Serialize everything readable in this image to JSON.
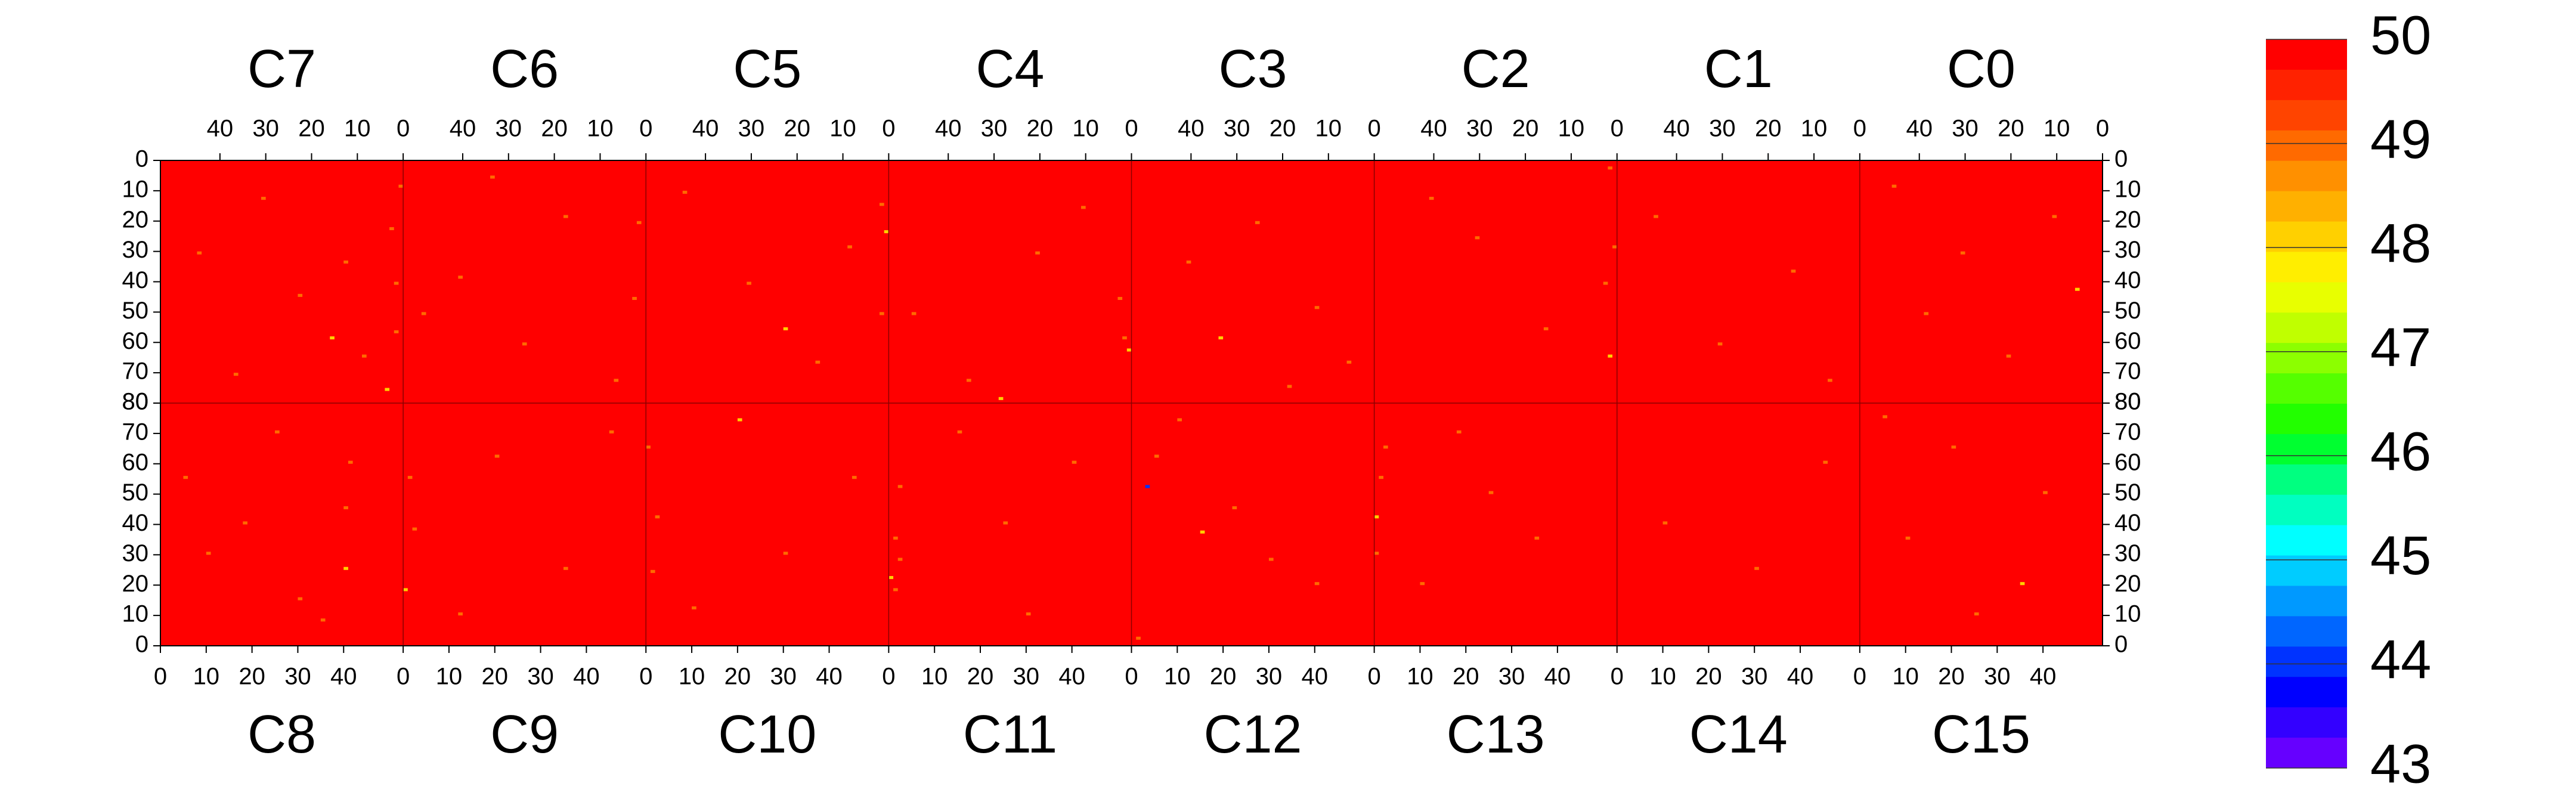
{
  "chart_data": {
    "type": "heatmap",
    "top_chips": [
      "C7",
      "C6",
      "C5",
      "C4",
      "C3",
      "C2",
      "C1",
      "C0"
    ],
    "bottom_chips": [
      "C8",
      "C9",
      "C10",
      "C11",
      "C12",
      "C13",
      "C14",
      "C15"
    ],
    "xlim": [
      0,
      53
    ],
    "xticks": [
      0,
      10,
      20,
      30,
      40
    ],
    "ylim": [
      0,
      80
    ],
    "yticks": [
      0,
      10,
      20,
      30,
      40,
      50,
      60,
      70,
      80
    ],
    "zlim": [
      43,
      50
    ],
    "zticks": [
      43,
      44,
      45,
      46,
      47,
      48,
      49,
      50
    ],
    "colors": [
      "#ff0000",
      "#ff2200",
      "#ff4400",
      "#ff6a00",
      "#ff9000",
      "#ffb000",
      "#ffd000",
      "#ffee00",
      "#e8ff00",
      "#c0ff00",
      "#8cff00",
      "#55ff00",
      "#22ff00",
      "#00ff30",
      "#00ff80",
      "#00ffc0",
      "#00ffff",
      "#00ccff",
      "#0099ff",
      "#0066ff",
      "#0033ff",
      "#0000ff",
      "#3300ff",
      "#6600ff"
    ],
    "fill_value": 50,
    "cells": [
      [
        "C7",
        2,
        22,
        49
      ],
      [
        "C7",
        1,
        40,
        49
      ],
      [
        "C7",
        1,
        56,
        49
      ],
      [
        "C7",
        15,
        58,
        48
      ],
      [
        "C7",
        30,
        12,
        49
      ],
      [
        "C7",
        44,
        30,
        49
      ],
      [
        "C7",
        8,
        64,
        49
      ],
      [
        "C7",
        0,
        8,
        49
      ],
      [
        "C7",
        22,
        44,
        49
      ],
      [
        "C7",
        36,
        70,
        49
      ],
      [
        "C7",
        3,
        75,
        48
      ],
      [
        "C7",
        12,
        33,
        49
      ],
      [
        "C6",
        1,
        20,
        49
      ],
      [
        "C6",
        2,
        45,
        49
      ],
      [
        "C6",
        17,
        18,
        49
      ],
      [
        "C6",
        26,
        60,
        49
      ],
      [
        "C6",
        40,
        38,
        49
      ],
      [
        "C6",
        6,
        72,
        49
      ],
      [
        "C6",
        33,
        5,
        49
      ],
      [
        "C6",
        48,
        50,
        49
      ],
      [
        "C5",
        1,
        14,
        49
      ],
      [
        "C5",
        0,
        23,
        48
      ],
      [
        "C5",
        1,
        50,
        49
      ],
      [
        "C5",
        30,
        40,
        49
      ],
      [
        "C5",
        15,
        66,
        49
      ],
      [
        "C5",
        44,
        10,
        49
      ],
      [
        "C5",
        22,
        55,
        48
      ],
      [
        "C5",
        8,
        28,
        49
      ],
      [
        "C4",
        1,
        58,
        49
      ],
      [
        "C4",
        0,
        62,
        48
      ],
      [
        "C4",
        2,
        45,
        49
      ],
      [
        "C4",
        20,
        30,
        49
      ],
      [
        "C4",
        35,
        72,
        49
      ],
      [
        "C4",
        10,
        15,
        49
      ],
      [
        "C4",
        47,
        50,
        49
      ],
      [
        "C4",
        28,
        78,
        48
      ],
      [
        "C3",
        40,
        33,
        49
      ],
      [
        "C3",
        12,
        48,
        49
      ],
      [
        "C3",
        25,
        20,
        49
      ],
      [
        "C3",
        5,
        66,
        49
      ],
      [
        "C3",
        33,
        58,
        48
      ],
      [
        "C3",
        18,
        74,
        49
      ],
      [
        "C2",
        1,
        2,
        49
      ],
      [
        "C2",
        0,
        28,
        49
      ],
      [
        "C2",
        2,
        40,
        49
      ],
      [
        "C2",
        1,
        64,
        48
      ],
      [
        "C2",
        30,
        25,
        49
      ],
      [
        "C2",
        15,
        55,
        49
      ],
      [
        "C2",
        40,
        12,
        49
      ],
      [
        "C1",
        14,
        36,
        49
      ],
      [
        "C1",
        30,
        60,
        49
      ],
      [
        "C1",
        44,
        18,
        49
      ],
      [
        "C1",
        6,
        72,
        49
      ],
      [
        "C0",
        10,
        18,
        49
      ],
      [
        "C0",
        5,
        42,
        48
      ],
      [
        "C0",
        30,
        30,
        49
      ],
      [
        "C0",
        45,
        8,
        49
      ],
      [
        "C0",
        20,
        64,
        49
      ],
      [
        "C0",
        38,
        50,
        49
      ],
      [
        "C8",
        40,
        45,
        49
      ],
      [
        "C8",
        41,
        60,
        49
      ],
      [
        "C8",
        40,
        25,
        48
      ],
      [
        "C8",
        35,
        8,
        49
      ],
      [
        "C8",
        10,
        30,
        49
      ],
      [
        "C8",
        5,
        55,
        49
      ],
      [
        "C8",
        25,
        70,
        49
      ],
      [
        "C8",
        30,
        15,
        49
      ],
      [
        "C8",
        18,
        40,
        49
      ],
      [
        "C9",
        1,
        55,
        49
      ],
      [
        "C9",
        0,
        18,
        48
      ],
      [
        "C9",
        2,
        38,
        49
      ],
      [
        "C9",
        20,
        62,
        49
      ],
      [
        "C9",
        35,
        25,
        49
      ],
      [
        "C9",
        45,
        70,
        49
      ],
      [
        "C9",
        12,
        10,
        49
      ],
      [
        "C10",
        1,
        24,
        49
      ],
      [
        "C10",
        0,
        65,
        49
      ],
      [
        "C10",
        2,
        42,
        49
      ],
      [
        "C10",
        20,
        74,
        48
      ],
      [
        "C10",
        30,
        30,
        49
      ],
      [
        "C10",
        45,
        55,
        49
      ],
      [
        "C10",
        10,
        12,
        49
      ],
      [
        "C11",
        1,
        18,
        49
      ],
      [
        "C11",
        0,
        22,
        48
      ],
      [
        "C11",
        1,
        35,
        49
      ],
      [
        "C11",
        2,
        28,
        49
      ],
      [
        "C11",
        2,
        52,
        49
      ],
      [
        "C11",
        25,
        40,
        49
      ],
      [
        "C11",
        40,
        60,
        49
      ],
      [
        "C11",
        15,
        70,
        49
      ],
      [
        "C11",
        30,
        10,
        49
      ],
      [
        "C12",
        3,
        52,
        44
      ],
      [
        "C12",
        15,
        37,
        48
      ],
      [
        "C12",
        22,
        45,
        49
      ],
      [
        "C12",
        30,
        28,
        49
      ],
      [
        "C12",
        5,
        62,
        49
      ],
      [
        "C12",
        40,
        20,
        49
      ],
      [
        "C12",
        10,
        74,
        49
      ],
      [
        "C12",
        1,
        2,
        49
      ],
      [
        "C13",
        0,
        30,
        49
      ],
      [
        "C13",
        0,
        42,
        48
      ],
      [
        "C13",
        1,
        55,
        49
      ],
      [
        "C13",
        2,
        65,
        49
      ],
      [
        "C13",
        10,
        20,
        49
      ],
      [
        "C13",
        25,
        50,
        49
      ],
      [
        "C13",
        35,
        35,
        49
      ],
      [
        "C13",
        18,
        70,
        49
      ],
      [
        "C14",
        10,
        40,
        49
      ],
      [
        "C14",
        30,
        25,
        49
      ],
      [
        "C14",
        45,
        60,
        49
      ],
      [
        "C15",
        25,
        10,
        49
      ],
      [
        "C15",
        10,
        35,
        49
      ],
      [
        "C15",
        40,
        50,
        49
      ],
      [
        "C15",
        20,
        65,
        49
      ],
      [
        "C15",
        35,
        20,
        48
      ],
      [
        "C15",
        5,
        75,
        49
      ]
    ]
  }
}
